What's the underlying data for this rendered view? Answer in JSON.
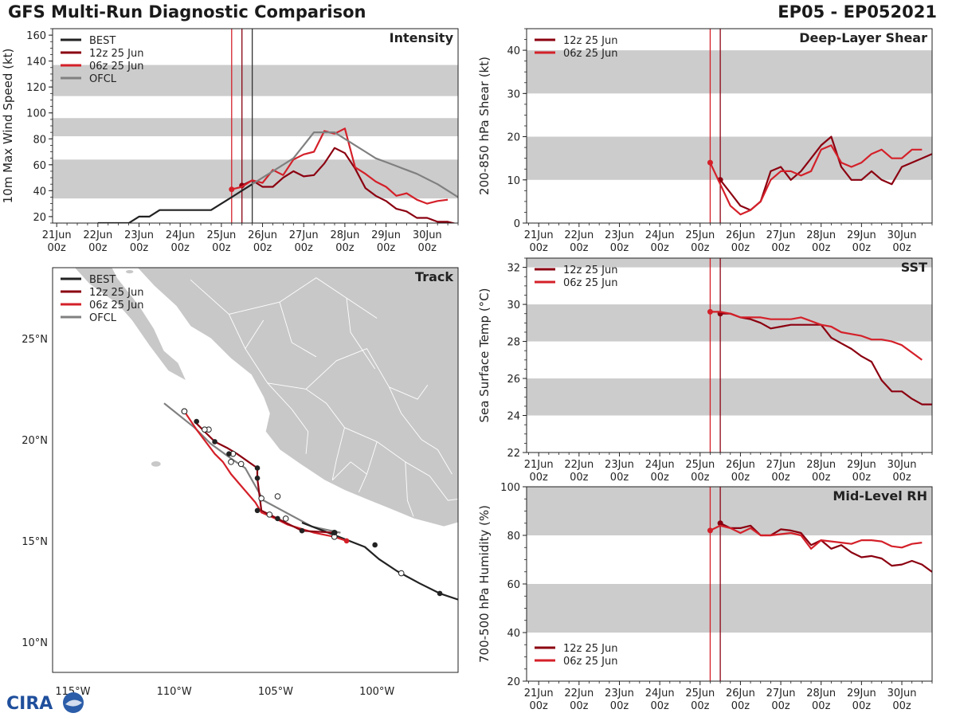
{
  "header": {
    "title": "GFS Multi-Run Diagnostic Comparison",
    "storm_id": "EP05 - EP052021"
  },
  "logo": {
    "text": "CIRA"
  },
  "colors": {
    "best": "#222222",
    "run12": "#8b0010",
    "run06": "#d42029",
    "ofcl": "#808080",
    "band": "#cccccc",
    "land": "#c8c8c8",
    "vline": "#333333"
  },
  "legend": {
    "best": "BEST",
    "run12": "12z 25 Jun",
    "run06": "06z 25 Jun",
    "ofcl": "OFCL"
  },
  "time_ticks": [
    {
      "day": "21Jun",
      "hr": "00z"
    },
    {
      "day": "22Jun",
      "hr": "00z"
    },
    {
      "day": "23Jun",
      "hr": "00z"
    },
    {
      "day": "24Jun",
      "hr": "00z"
    },
    {
      "day": "25Jun",
      "hr": "00z"
    },
    {
      "day": "26Jun",
      "hr": "00z"
    },
    {
      "day": "27Jun",
      "hr": "00z"
    },
    {
      "day": "28Jun",
      "hr": "00z"
    },
    {
      "day": "29Jun",
      "hr": "00z"
    },
    {
      "day": "30Jun",
      "hr": "00z"
    }
  ],
  "chart_data": [
    {
      "id": "intensity",
      "type": "line",
      "title": "Intensity",
      "ylabel": "10m Max Wind Speed (kt)",
      "xlabel": "",
      "xlim": [
        -4.1,
        5.75
      ],
      "ylim": [
        15,
        165
      ],
      "yticks": [
        20,
        40,
        60,
        80,
        100,
        120,
        140,
        160
      ],
      "bands": [
        [
          34,
          64
        ],
        [
          82,
          96
        ],
        [
          113,
          137
        ]
      ],
      "vlines": [
        {
          "x": 0.25,
          "color": "run06"
        },
        {
          "x": 0.5,
          "color": "run12"
        },
        {
          "x": 0.75,
          "color": "vline"
        }
      ],
      "legend": [
        "best",
        "run12",
        "run06",
        "ofcl"
      ],
      "series": [
        {
          "key": "best",
          "x": [
            -3.0,
            -2.75,
            -2.5,
            -2.25,
            -2.0,
            -1.75,
            -1.5,
            -1.25,
            -1.0,
            -0.75,
            -0.5,
            -0.25,
            0,
            0.25,
            0.5,
            0.75
          ],
          "y": [
            15,
            15,
            15,
            15,
            20,
            20,
            25,
            25,
            25,
            25,
            25,
            25,
            30,
            35,
            40,
            45
          ]
        },
        {
          "key": "run12",
          "x": [
            0.5,
            0.75,
            1.0,
            1.25,
            1.5,
            1.75,
            2.0,
            2.25,
            2.5,
            2.75,
            3.0,
            3.25,
            3.5,
            3.75,
            4.0,
            4.25,
            4.5,
            4.75,
            5.0,
            5.25,
            5.5,
            5.75
          ],
          "y": [
            44,
            48,
            43,
            43,
            50,
            55,
            51,
            52,
            61,
            73,
            69,
            57,
            42,
            36,
            32,
            26,
            24,
            19,
            19,
            16,
            16,
            14
          ],
          "start_marker": true
        },
        {
          "key": "run06",
          "x": [
            0.25,
            0.5,
            0.75,
            1.0,
            1.25,
            1.5,
            1.75,
            2.0,
            2.25,
            2.5,
            2.75,
            3.0,
            3.25,
            3.5,
            3.75,
            4.0,
            4.25,
            4.5,
            4.75,
            5.0,
            5.25,
            5.5
          ],
          "y": [
            41,
            43,
            48,
            46,
            56,
            52,
            64,
            68,
            70,
            86,
            84,
            88,
            58,
            53,
            47,
            43,
            36,
            38,
            33,
            30,
            32,
            33
          ],
          "start_marker": true
        },
        {
          "key": "ofcl",
          "x": [
            0.75,
            1.0,
            1.25,
            1.5,
            1.75,
            2.0,
            2.25,
            2.5,
            2.75,
            3.0,
            3.25,
            3.5,
            3.75,
            4.0,
            4.25,
            4.5,
            4.75,
            5.0,
            5.25,
            5.5,
            5.75
          ],
          "y": [
            45,
            50,
            55,
            60,
            65,
            75,
            85,
            85,
            85,
            80,
            75,
            70,
            65,
            62,
            59,
            56,
            53,
            49,
            45,
            40,
            35
          ]
        }
      ]
    },
    {
      "id": "shear",
      "type": "line",
      "title": "Deep-Layer Shear",
      "ylabel": "200-850 hPa Shear (kt)",
      "xlabel": "",
      "xlim": [
        -4.3,
        5.75
      ],
      "ylim": [
        0,
        45
      ],
      "yticks": [
        0,
        10,
        20,
        30,
        40
      ],
      "bands": [
        [
          10,
          20
        ],
        [
          30,
          40
        ]
      ],
      "vlines": [
        {
          "x": 0.25,
          "color": "run06"
        },
        {
          "x": 0.5,
          "color": "run12"
        }
      ],
      "legend": [
        "run12",
        "run06"
      ],
      "series": [
        {
          "key": "run12",
          "x": [
            0.5,
            0.75,
            1.0,
            1.25,
            1.5,
            1.75,
            2.0,
            2.25,
            2.5,
            2.75,
            3.0,
            3.25,
            3.5,
            3.75,
            4.0,
            4.25,
            4.5,
            4.75,
            5.0,
            5.25,
            5.5,
            5.75
          ],
          "y": [
            10,
            7,
            4,
            3,
            5,
            12,
            13,
            10,
            12,
            15,
            18,
            20,
            13,
            10,
            10,
            12,
            10,
            9,
            13,
            14,
            15,
            16
          ],
          "start_marker": true
        },
        {
          "key": "run06",
          "x": [
            0.25,
            0.5,
            0.75,
            1.0,
            1.25,
            1.5,
            1.75,
            2.0,
            2.25,
            2.5,
            2.75,
            3.0,
            3.25,
            3.5,
            3.75,
            4.0,
            4.25,
            4.5,
            4.75,
            5.0,
            5.25,
            5.5
          ],
          "y": [
            14,
            9,
            4,
            2,
            3,
            5,
            10,
            12,
            12,
            11,
            12,
            17,
            18,
            14,
            13,
            14,
            16,
            17,
            15,
            15,
            17,
            17
          ],
          "start_marker": true
        }
      ]
    },
    {
      "id": "sst",
      "type": "line",
      "title": "SST",
      "ylabel": "Sea Surface Temp (°C)",
      "xlabel": "",
      "xlim": [
        -4.3,
        5.75
      ],
      "ylim": [
        22,
        32.5
      ],
      "yticks": [
        22,
        24,
        26,
        28,
        30,
        32
      ],
      "bands": [
        [
          24,
          26
        ],
        [
          28,
          30
        ],
        [
          32,
          32.5
        ]
      ],
      "vlines": [
        {
          "x": 0.25,
          "color": "run06"
        },
        {
          "x": 0.5,
          "color": "run12"
        }
      ],
      "legend": [
        "run12",
        "run06"
      ],
      "series": [
        {
          "key": "run12",
          "x": [
            0.5,
            0.75,
            1.0,
            1.25,
            1.5,
            1.75,
            2.0,
            2.25,
            2.5,
            2.75,
            3.0,
            3.25,
            3.5,
            3.75,
            4.0,
            4.25,
            4.5,
            4.75,
            5.0,
            5.25,
            5.5,
            5.75
          ],
          "y": [
            29.5,
            29.5,
            29.3,
            29.2,
            29.0,
            28.7,
            28.8,
            28.9,
            28.9,
            28.9,
            28.9,
            28.2,
            27.9,
            27.6,
            27.2,
            26.9,
            25.9,
            25.3,
            25.3,
            24.9,
            24.6,
            24.6
          ],
          "start_marker": true
        },
        {
          "key": "run06",
          "x": [
            0.25,
            0.5,
            0.75,
            1.0,
            1.25,
            1.5,
            1.75,
            2.0,
            2.25,
            2.5,
            2.75,
            3.0,
            3.25,
            3.5,
            3.75,
            4.0,
            4.25,
            4.5,
            4.75,
            5.0,
            5.25,
            5.5
          ],
          "y": [
            29.6,
            29.6,
            29.5,
            29.3,
            29.3,
            29.3,
            29.2,
            29.2,
            29.2,
            29.3,
            29.1,
            28.9,
            28.8,
            28.5,
            28.4,
            28.3,
            28.1,
            28.1,
            28.0,
            27.8,
            27.4,
            27.0
          ],
          "start_marker": true
        }
      ]
    },
    {
      "id": "rh",
      "type": "line",
      "title": "Mid-Level RH",
      "ylabel": "700-500 hPa Humidity (%)",
      "xlabel": "",
      "xlim": [
        -4.3,
        5.75
      ],
      "ylim": [
        20,
        100
      ],
      "yticks": [
        20,
        40,
        60,
        80,
        100
      ],
      "bands": [
        [
          40,
          60
        ],
        [
          80,
          100
        ]
      ],
      "vlines": [
        {
          "x": 0.25,
          "color": "run06"
        },
        {
          "x": 0.5,
          "color": "run12"
        }
      ],
      "legend": [
        "run12",
        "run06"
      ],
      "legend_position": "bottom-left",
      "series": [
        {
          "key": "run12",
          "x": [
            0.5,
            0.75,
            1.0,
            1.25,
            1.5,
            1.75,
            2.0,
            2.25,
            2.5,
            2.75,
            3.0,
            3.25,
            3.5,
            3.75,
            4.0,
            4.25,
            4.5,
            4.75,
            5.0,
            5.25,
            5.5,
            5.75
          ],
          "y": [
            85,
            83,
            83,
            84,
            80,
            80,
            82.5,
            82,
            81,
            76,
            78,
            74.5,
            76,
            73,
            71,
            71.5,
            70.5,
            67.5,
            68,
            69.5,
            68,
            65
          ],
          "start_marker": true
        },
        {
          "key": "run06",
          "x": [
            0.25,
            0.5,
            0.75,
            1.0,
            1.25,
            1.5,
            1.75,
            2.0,
            2.25,
            2.5,
            2.75,
            3.0,
            3.25,
            3.5,
            3.75,
            4.0,
            4.25,
            4.5,
            4.75,
            5.0,
            5.25,
            5.5
          ],
          "y": [
            82,
            84,
            83,
            81,
            83,
            80,
            80,
            80.5,
            81,
            80,
            74.5,
            78,
            77.5,
            77,
            76.5,
            78,
            78,
            77.5,
            75.5,
            75,
            76.5,
            77
          ],
          "start_marker": true
        }
      ]
    },
    {
      "id": "track",
      "type": "line",
      "title": "Track",
      "xlabel": "",
      "ylabel": "",
      "xlim": [
        -116.0,
        -96.0
      ],
      "ylim": [
        8.5,
        28.5
      ],
      "xticks": [
        {
          "value": -115,
          "label": "115°W"
        },
        {
          "value": -110,
          "label": "110°W"
        },
        {
          "value": -105,
          "label": "105°W"
        },
        {
          "value": -100,
          "label": "100°W"
        }
      ],
      "yticks": [
        {
          "value": 10,
          "label": "10°N"
        },
        {
          "value": 15,
          "label": "15°N"
        },
        {
          "value": 20,
          "label": "20°N"
        },
        {
          "value": 25,
          "label": "25°N"
        }
      ],
      "legend": [
        "best",
        "run12",
        "run06",
        "ofcl"
      ],
      "series": [
        {
          "key": "best",
          "lon": [
            -96.0,
            -96.9,
            -97.9,
            -99.0,
            -99.9,
            -100.6,
            -102.4,
            -103.7
          ],
          "lat": [
            12.1,
            12.4,
            12.9,
            13.5,
            14.1,
            14.7,
            15.4,
            15.9
          ],
          "markers": [
            {
              "lon": -96.9,
              "lat": 12.4,
              "fill": "filled"
            },
            {
              "lon": -98.8,
              "lat": 13.4,
              "fill": "open"
            },
            {
              "lon": -100.1,
              "lat": 14.8,
              "fill": "filled"
            }
          ]
        },
        {
          "key": "run12",
          "lon": [
            -102.1,
            -103.7,
            -104.9,
            -105.7,
            -105.9,
            -105.9,
            -106.9,
            -107.4,
            -108.0,
            -108.7,
            -109.0
          ],
          "lat": [
            15.4,
            15.5,
            16.1,
            16.5,
            18.1,
            18.6,
            19.3,
            19.6,
            19.9,
            20.6,
            20.9
          ],
          "markers": [
            {
              "lon": -102.1,
              "lat": 15.4,
              "fill": "filled"
            },
            {
              "lon": -103.7,
              "lat": 15.5,
              "fill": "filled"
            },
            {
              "lon": -104.9,
              "lat": 16.1,
              "fill": "filled"
            },
            {
              "lon": -105.9,
              "lat": 16.5,
              "fill": "filled"
            },
            {
              "lon": -105.9,
              "lat": 18.1,
              "fill": "filled"
            },
            {
              "lon": -105.9,
              "lat": 18.6,
              "fill": "filled"
            },
            {
              "lon": -107.3,
              "lat": 19.3,
              "fill": "filled"
            },
            {
              "lon": -108.0,
              "lat": 19.9,
              "fill": "filled"
            },
            {
              "lon": -108.9,
              "lat": 20.9,
              "fill": "filled"
            }
          ]
        },
        {
          "key": "run06",
          "lon": [
            -101.5,
            -102.1,
            -103.1,
            -104.4,
            -105.0,
            -105.7,
            -106.0,
            -106.6,
            -107.2,
            -107.6,
            -108.0,
            -108.9,
            -109.5
          ],
          "lat": [
            15.0,
            15.2,
            15.4,
            15.8,
            16.1,
            16.4,
            16.9,
            17.6,
            18.3,
            18.9,
            19.3,
            20.5,
            21.4
          ],
          "markers": [
            {
              "lon": -101.5,
              "lat": 15.0,
              "fill": "filled"
            },
            {
              "lon": -102.1,
              "lat": 15.2,
              "fill": "open"
            },
            {
              "lon": -104.5,
              "lat": 16.1,
              "fill": "open"
            },
            {
              "lon": -105.3,
              "lat": 16.3,
              "fill": "open"
            },
            {
              "lon": -104.9,
              "lat": 17.2,
              "fill": "open"
            },
            {
              "lon": -106.7,
              "lat": 18.8,
              "fill": "open"
            },
            {
              "lon": -107.1,
              "lat": 19.3,
              "fill": "open"
            },
            {
              "lon": -108.5,
              "lat": 20.5,
              "fill": "open"
            },
            {
              "lon": -109.5,
              "lat": 21.4,
              "fill": "open"
            }
          ]
        },
        {
          "key": "ofcl",
          "lon": [
            -101.8,
            -103.2,
            -105.6,
            -106.5,
            -107.1,
            -108.2,
            -109.0,
            -110.5
          ],
          "lat": [
            15.4,
            15.7,
            17.0,
            18.6,
            19.0,
            19.8,
            20.6,
            21.8
          ],
          "markers": [
            {
              "lon": -102.1,
              "lat": 15.4,
              "fill": "open"
            },
            {
              "lon": -105.7,
              "lat": 17.1,
              "fill": "open"
            },
            {
              "lon": -107.2,
              "lat": 18.9,
              "fill": "open"
            },
            {
              "lon": -108.3,
              "lat": 20.5,
              "fill": "open"
            },
            {
              "lon": -109.5,
              "lat": 21.4,
              "fill": "open"
            }
          ]
        }
      ]
    }
  ]
}
